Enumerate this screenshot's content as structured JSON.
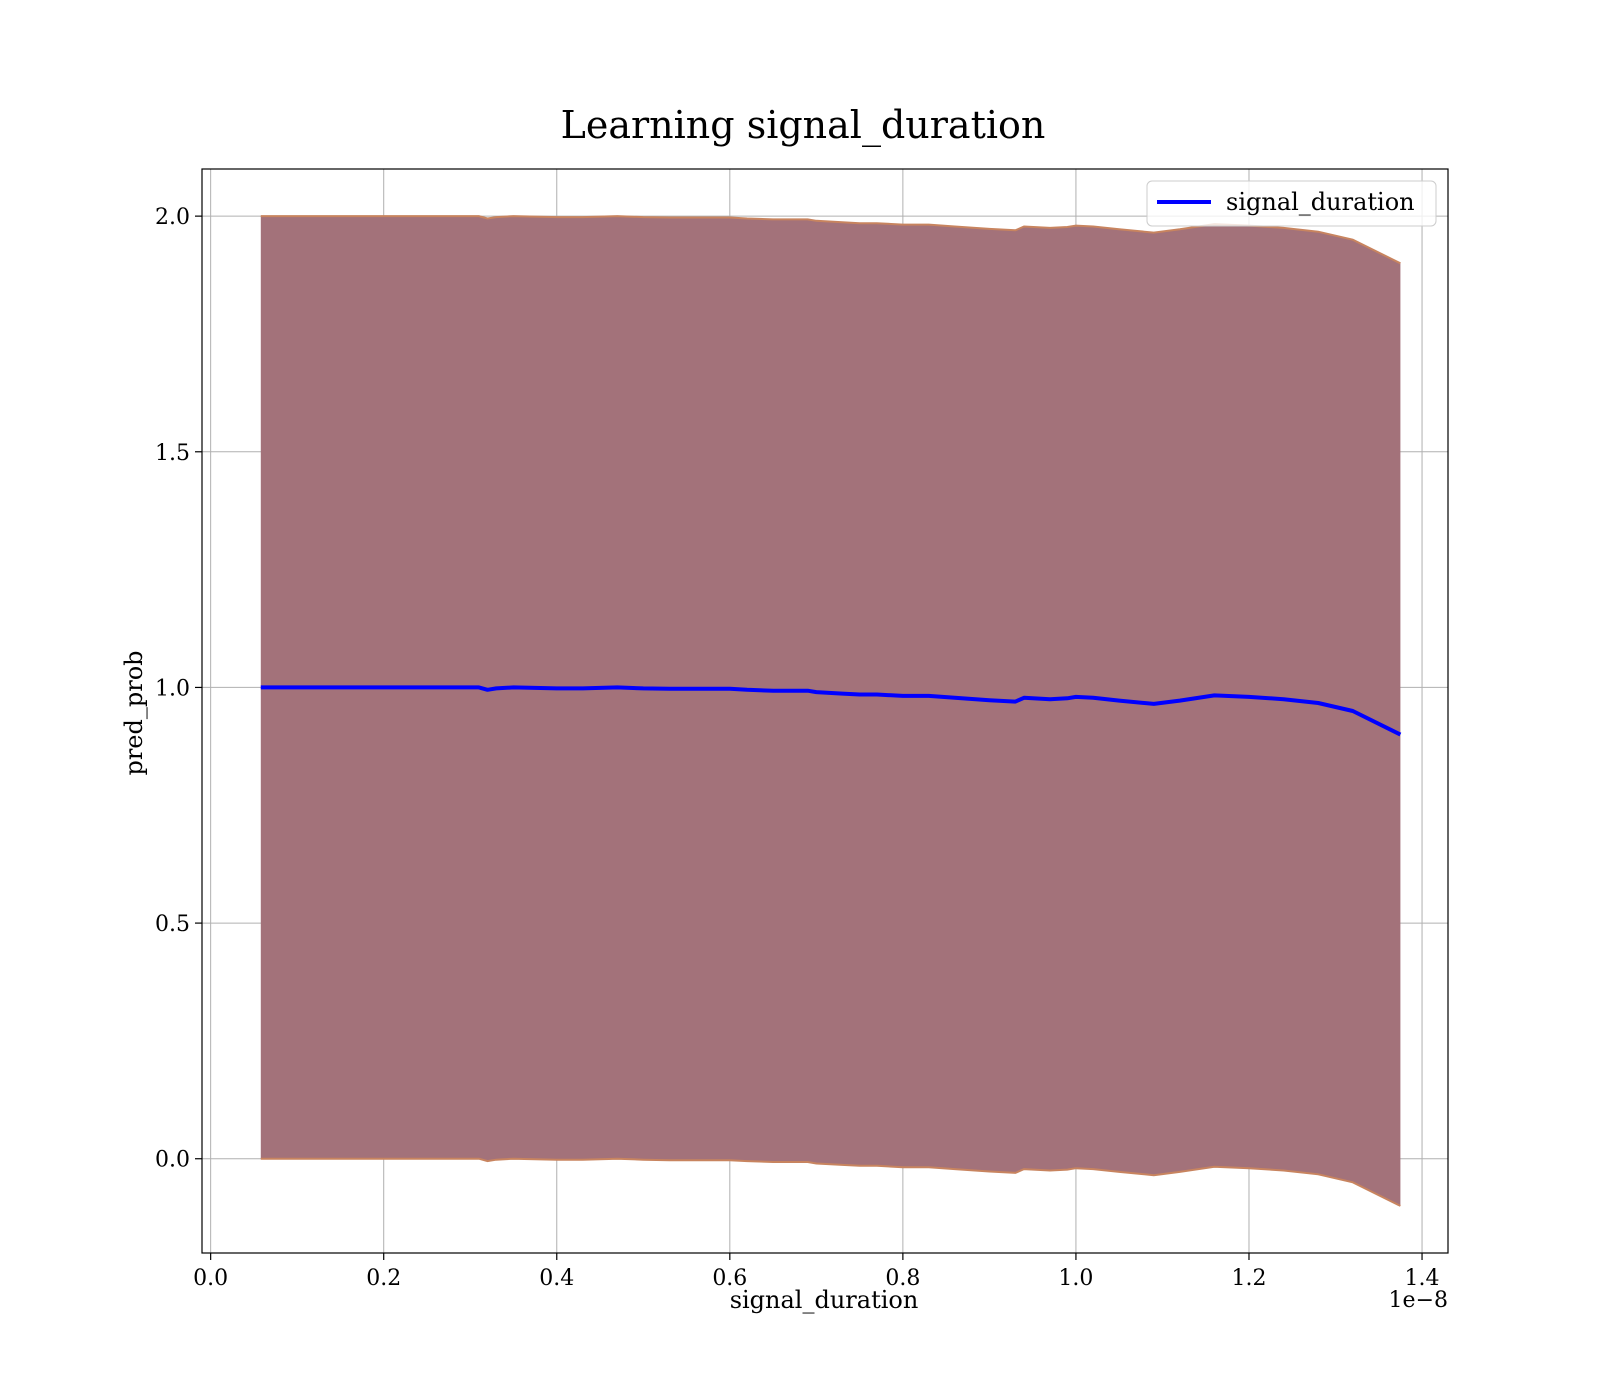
{
  "chart_data": {
    "type": "area",
    "title": "Learning signal_duration",
    "xlabel": "signal_duration",
    "ylabel": "pred_prob",
    "x_offset_label": "1e−8",
    "x_unit_factor": 1e-08,
    "xlim": [
      -0.01,
      1.43
    ],
    "ylim": [
      -0.2,
      2.1
    ],
    "x_ticks": [
      0.0,
      0.2,
      0.4,
      0.6,
      0.8,
      1.0,
      1.2,
      1.4
    ],
    "x_tick_labels": [
      "0.0",
      "0.2",
      "0.4",
      "0.6",
      "0.8",
      "1.0",
      "1.2",
      "1.4"
    ],
    "y_ticks": [
      0.0,
      0.5,
      1.0,
      1.5,
      2.0
    ],
    "y_tick_labels": [
      "0.0",
      "0.5",
      "1.0",
      "1.5",
      "2.0"
    ],
    "grid": true,
    "legend_position": "top-right",
    "colors": {
      "line": "#0000ff",
      "band_fill": "#a3727a",
      "band_edge": "#c8845f",
      "grid": "#b0b0b0"
    },
    "series": [
      {
        "name": "signal_duration",
        "x": [
          0.058,
          0.09,
          0.11,
          0.15,
          0.18,
          0.22,
          0.25,
          0.31,
          0.32,
          0.33,
          0.35,
          0.4,
          0.43,
          0.47,
          0.5,
          0.53,
          0.55,
          0.6,
          0.62,
          0.65,
          0.69,
          0.7,
          0.73,
          0.75,
          0.77,
          0.8,
          0.83,
          0.86,
          0.9,
          0.93,
          0.94,
          0.97,
          0.99,
          1.0,
          1.02,
          1.05,
          1.09,
          1.12,
          1.16,
          1.2,
          1.24,
          1.28,
          1.32,
          1.375
        ],
        "y": [
          1.0,
          1.0,
          1.0,
          1.0,
          1.0,
          1.0,
          1.0,
          1.0,
          0.995,
          0.998,
          1.0,
          0.998,
          0.998,
          1.0,
          0.998,
          0.997,
          0.997,
          0.997,
          0.995,
          0.993,
          0.993,
          0.99,
          0.987,
          0.985,
          0.985,
          0.982,
          0.982,
          0.978,
          0.973,
          0.97,
          0.978,
          0.975,
          0.977,
          0.98,
          0.978,
          0.972,
          0.965,
          0.972,
          0.983,
          0.98,
          0.975,
          0.967,
          0.95,
          0.9
        ],
        "band_upper": [
          2.0,
          2.0,
          2.0,
          2.0,
          2.0,
          2.0,
          2.0,
          2.0,
          1.995,
          1.998,
          2.0,
          1.998,
          1.998,
          2.0,
          1.998,
          1.997,
          1.997,
          1.997,
          1.995,
          1.993,
          1.993,
          1.99,
          1.987,
          1.985,
          1.985,
          1.982,
          1.982,
          1.978,
          1.973,
          1.97,
          1.978,
          1.975,
          1.977,
          1.98,
          1.978,
          1.972,
          1.965,
          1.972,
          1.983,
          1.98,
          1.975,
          1.967,
          1.95,
          1.9
        ],
        "band_lower": [
          0.0,
          0.0,
          0.0,
          0.0,
          0.0,
          0.0,
          0.0,
          0.0,
          -0.005,
          -0.002,
          0.0,
          -0.002,
          -0.002,
          0.0,
          -0.002,
          -0.003,
          -0.003,
          -0.003,
          -0.005,
          -0.007,
          -0.007,
          -0.01,
          -0.013,
          -0.015,
          -0.015,
          -0.018,
          -0.018,
          -0.022,
          -0.027,
          -0.03,
          -0.022,
          -0.025,
          -0.023,
          -0.02,
          -0.022,
          -0.028,
          -0.035,
          -0.028,
          -0.017,
          -0.02,
          -0.025,
          -0.033,
          -0.05,
          -0.1
        ]
      }
    ]
  }
}
